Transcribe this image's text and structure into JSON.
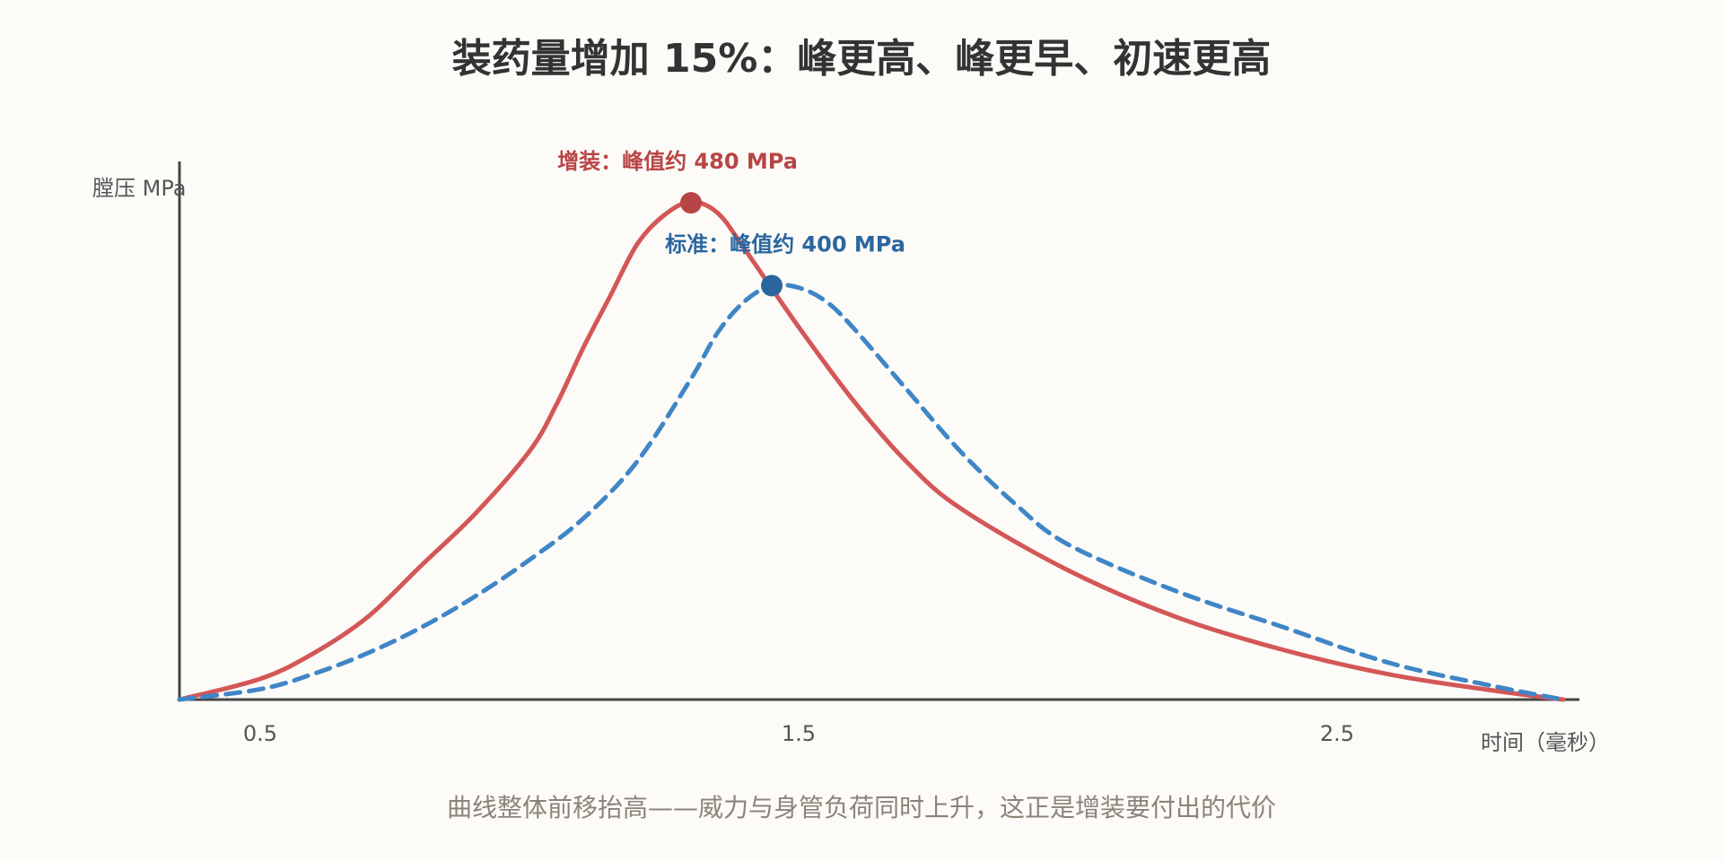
{
  "chart_data": {
    "type": "line",
    "title": "装药量增加 15%：峰更高、峰更早、初速更高",
    "subtitle": "曲线整体前移抬高——威力与身管负荷同时上升，这正是增装要付出的代价",
    "xlabel": "时间（毫秒）",
    "ylabel": "膛压 MPa",
    "x_ticks": [
      "0.5",
      "1.5",
      "2.5"
    ],
    "x_tick_values": [
      0.5,
      1.5,
      2.5
    ],
    "xlim": [
      0.35,
      2.95
    ],
    "ylim": [
      0,
      520
    ],
    "grid": false,
    "colors": {
      "increased": "#d45757",
      "standard": "#3f86c7",
      "increased_marker": "#b84545",
      "standard_marker": "#2b679e",
      "axis": "#444444"
    },
    "series": [
      {
        "key": "increased",
        "style": "solid",
        "points": [
          [
            0.35,
            0
          ],
          [
            0.5,
            20
          ],
          [
            0.6,
            45
          ],
          [
            0.7,
            80
          ],
          [
            0.8,
            130
          ],
          [
            0.9,
            180
          ],
          [
            1.0,
            240
          ],
          [
            1.05,
            285
          ],
          [
            1.1,
            340
          ],
          [
            1.15,
            390
          ],
          [
            1.2,
            440
          ],
          [
            1.25,
            468
          ],
          [
            1.3,
            481
          ],
          [
            1.35,
            470
          ],
          [
            1.4,
            435
          ],
          [
            1.5,
            360
          ],
          [
            1.6,
            290
          ],
          [
            1.7,
            230
          ],
          [
            1.8,
            185
          ],
          [
            2.0,
            125
          ],
          [
            2.2,
            80
          ],
          [
            2.4,
            48
          ],
          [
            2.6,
            24
          ],
          [
            2.8,
            8
          ],
          [
            2.92,
            0
          ]
        ],
        "peak": {
          "x": 1.3,
          "y": 480,
          "label": "增装：峰值约 480 MPa"
        }
      },
      {
        "key": "standard",
        "style": "dashed",
        "points": [
          [
            0.35,
            0
          ],
          [
            0.5,
            10
          ],
          [
            0.6,
            25
          ],
          [
            0.7,
            45
          ],
          [
            0.8,
            70
          ],
          [
            0.9,
            100
          ],
          [
            1.0,
            135
          ],
          [
            1.1,
            175
          ],
          [
            1.2,
            230
          ],
          [
            1.3,
            310
          ],
          [
            1.35,
            355
          ],
          [
            1.4,
            385
          ],
          [
            1.45,
            400
          ],
          [
            1.5,
            398
          ],
          [
            1.55,
            385
          ],
          [
            1.6,
            360
          ],
          [
            1.7,
            300
          ],
          [
            1.8,
            240
          ],
          [
            1.9,
            190
          ],
          [
            2.0,
            150
          ],
          [
            2.2,
            105
          ],
          [
            2.4,
            70
          ],
          [
            2.6,
            35
          ],
          [
            2.8,
            12
          ],
          [
            2.92,
            0
          ]
        ],
        "peak": {
          "x": 1.45,
          "y": 400,
          "label": "标准：峰值约 400 MPa"
        }
      }
    ]
  }
}
